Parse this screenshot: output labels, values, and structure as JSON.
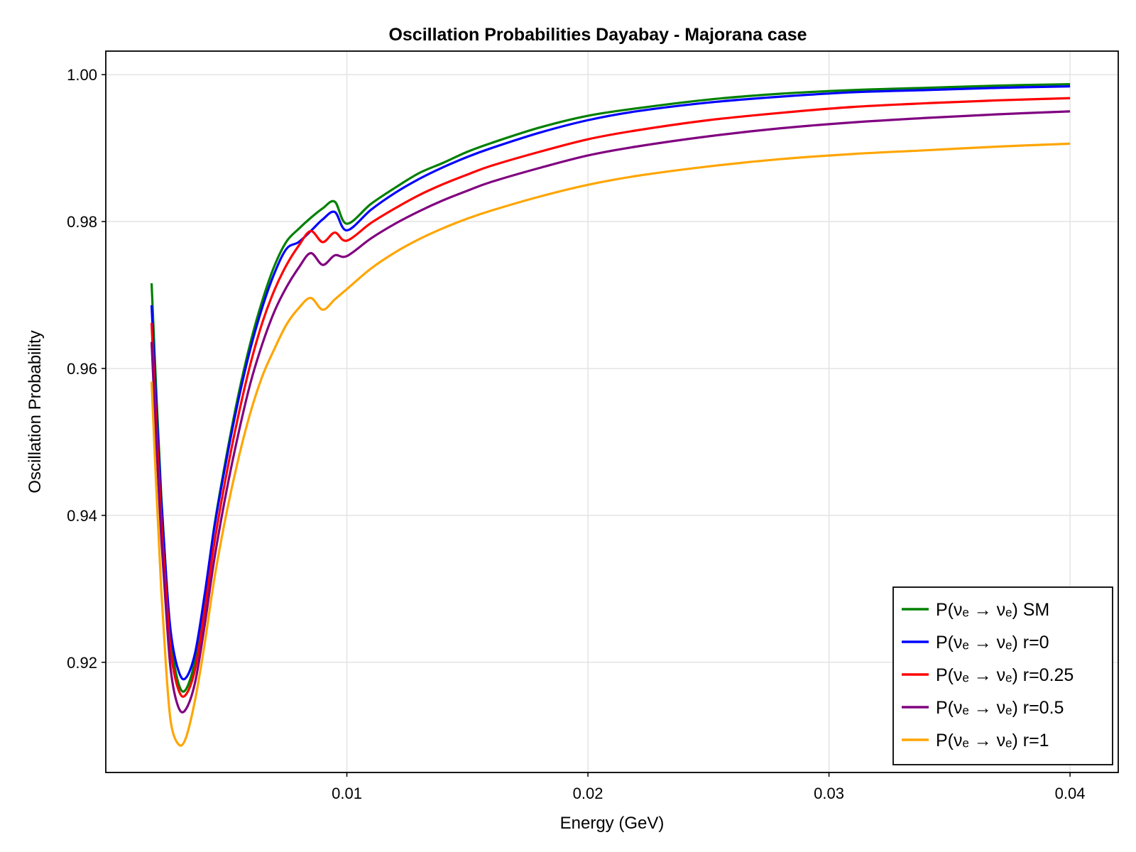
{
  "chart_data": {
    "type": "line",
    "title": "Oscillation Probabilities Dayabay - Majorana case",
    "xlabel": "Energy (GeV)",
    "ylabel": "Oscillation Probability",
    "xlim": [
      0.0,
      0.042
    ],
    "ylim": [
      0.905,
      1.0032
    ],
    "xticks": [
      0.01,
      0.02,
      0.03,
      0.04
    ],
    "xtick_labels": [
      "0.01",
      "0.02",
      "0.03",
      "0.04"
    ],
    "yticks": [
      0.92,
      0.94,
      0.96,
      0.98,
      1.0
    ],
    "ytick_labels": [
      "0.92",
      "0.94",
      "0.96",
      "0.98",
      "1.00"
    ],
    "grid": true,
    "legend_position": "bottom-right",
    "series": [
      {
        "name": "P(νₑ → νₑ) SM",
        "color": "#008000",
        "x": [
          0.0019,
          0.0021,
          0.0023,
          0.0025,
          0.0027,
          0.003,
          0.0033,
          0.0037,
          0.0041,
          0.0045,
          0.005,
          0.0055,
          0.006,
          0.0065,
          0.007,
          0.0075,
          0.008,
          0.0085,
          0.009,
          0.0095,
          0.01,
          0.011,
          0.012,
          0.013,
          0.014,
          0.015,
          0.016,
          0.018,
          0.02,
          0.022,
          0.025,
          0.028,
          0.031,
          0.034,
          0.037,
          0.04
        ],
        "y": [
          0.9716,
          0.9565,
          0.9427,
          0.9319,
          0.9231,
          0.9173,
          0.9162,
          0.9202,
          0.9286,
          0.9385,
          0.948,
          0.9564,
          0.9635,
          0.9693,
          0.974,
          0.9773,
          0.979,
          0.9805,
          0.9818,
          0.9827,
          0.9797,
          0.9824,
          0.9846,
          0.9866,
          0.988,
          0.9895,
          0.9907,
          0.9928,
          0.9944,
          0.9954,
          0.9966,
          0.9974,
          0.9979,
          0.9982,
          0.9985,
          0.9987
        ]
      },
      {
        "name": "P(νₑ → νₑ) r=0",
        "color": "#0000ff",
        "x": [
          0.0019,
          0.0021,
          0.0023,
          0.0025,
          0.0027,
          0.003,
          0.0033,
          0.0037,
          0.0041,
          0.0045,
          0.005,
          0.0055,
          0.006,
          0.0065,
          0.007,
          0.0075,
          0.008,
          0.0085,
          0.009,
          0.0095,
          0.01,
          0.011,
          0.012,
          0.013,
          0.014,
          0.015,
          0.016,
          0.018,
          0.02,
          0.022,
          0.025,
          0.028,
          0.031,
          0.034,
          0.037,
          0.04
        ],
        "y": [
          0.9686,
          0.9545,
          0.942,
          0.9319,
          0.924,
          0.919,
          0.9178,
          0.9212,
          0.9292,
          0.9383,
          0.9475,
          0.9557,
          0.9627,
          0.9684,
          0.973,
          0.9763,
          0.9772,
          0.9787,
          0.9803,
          0.9813,
          0.9788,
          0.9816,
          0.9839,
          0.9858,
          0.9874,
          0.9888,
          0.99,
          0.9921,
          0.9938,
          0.995,
          0.9962,
          0.997,
          0.9976,
          0.9979,
          0.9982,
          0.9984
        ]
      },
      {
        "name": "P(νₑ →  νₑ) r=0.25",
        "color": "#ff0000",
        "x": [
          0.0019,
          0.0021,
          0.0023,
          0.0025,
          0.0027,
          0.003,
          0.0033,
          0.0037,
          0.0041,
          0.0045,
          0.005,
          0.0055,
          0.006,
          0.0065,
          0.007,
          0.0075,
          0.008,
          0.0085,
          0.009,
          0.0095,
          0.01,
          0.011,
          0.012,
          0.013,
          0.014,
          0.015,
          0.016,
          0.018,
          0.02,
          0.022,
          0.025,
          0.028,
          0.031,
          0.034,
          0.037,
          0.04
        ],
        "y": [
          0.9662,
          0.952,
          0.9395,
          0.9298,
          0.9214,
          0.9164,
          0.9155,
          0.919,
          0.927,
          0.9362,
          0.9455,
          0.9536,
          0.9606,
          0.9663,
          0.9707,
          0.9741,
          0.9767,
          0.9787,
          0.9772,
          0.9785,
          0.9774,
          0.9798,
          0.9818,
          0.9836,
          0.9851,
          0.9864,
          0.9876,
          0.9895,
          0.9912,
          0.9924,
          0.9938,
          0.9948,
          0.9956,
          0.9961,
          0.9965,
          0.9968
        ]
      },
      {
        "name": "P(νₑ →  νₑ) r=0.5",
        "color": "#800080",
        "x": [
          0.0019,
          0.0021,
          0.0023,
          0.0025,
          0.0027,
          0.003,
          0.0033,
          0.0037,
          0.0041,
          0.0045,
          0.005,
          0.0055,
          0.006,
          0.0065,
          0.007,
          0.0075,
          0.008,
          0.0085,
          0.009,
          0.0095,
          0.01,
          0.011,
          0.012,
          0.013,
          0.014,
          0.015,
          0.016,
          0.018,
          0.02,
          0.022,
          0.025,
          0.028,
          0.031,
          0.034,
          0.037,
          0.04
        ],
        "y": [
          0.9636,
          0.9495,
          0.937,
          0.9271,
          0.9188,
          0.914,
          0.9135,
          0.9172,
          0.925,
          0.934,
          0.9432,
          0.9511,
          0.958,
          0.9634,
          0.9678,
          0.9711,
          0.9737,
          0.9757,
          0.9741,
          0.9754,
          0.9753,
          0.9777,
          0.9797,
          0.9814,
          0.9829,
          0.9842,
          0.9854,
          0.9873,
          0.989,
          0.9902,
          0.9916,
          0.9927,
          0.9935,
          0.9941,
          0.9946,
          0.995
        ]
      },
      {
        "name": "P(νₑ →  νₑ) r=1",
        "color": "#ffa500",
        "x": [
          0.0019,
          0.0021,
          0.0023,
          0.0025,
          0.0027,
          0.003,
          0.0033,
          0.0037,
          0.0041,
          0.0045,
          0.005,
          0.0055,
          0.006,
          0.0065,
          0.007,
          0.0075,
          0.008,
          0.0085,
          0.009,
          0.0095,
          0.01,
          0.011,
          0.012,
          0.013,
          0.014,
          0.015,
          0.016,
          0.018,
          0.02,
          0.022,
          0.025,
          0.028,
          0.031,
          0.034,
          0.037,
          0.04
        ],
        "y": [
          0.9582,
          0.9433,
          0.9299,
          0.9193,
          0.9118,
          0.9089,
          0.9095,
          0.9148,
          0.9225,
          0.9313,
          0.9402,
          0.9477,
          0.954,
          0.959,
          0.9627,
          0.966,
          0.9682,
          0.9696,
          0.968,
          0.9694,
          0.9708,
          0.9736,
          0.9758,
          0.9776,
          0.9791,
          0.9804,
          0.9815,
          0.9834,
          0.985,
          0.9862,
          0.9875,
          0.9885,
          0.9892,
          0.9897,
          0.9902,
          0.9906
        ]
      }
    ]
  }
}
